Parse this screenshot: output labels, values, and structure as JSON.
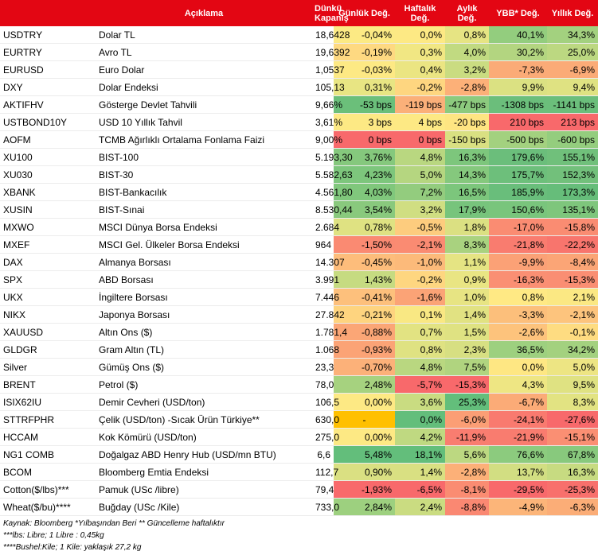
{
  "header": {
    "col0": "",
    "col1": "Açıklama",
    "col2": "Dünkü Kapanış",
    "col3": "Günlük Değ.",
    "col4": "Haftalık Değ.",
    "col5": "Aylık Değ.",
    "col6": "YBB* Değ.",
    "col7": "Yıllık Değ."
  },
  "rows": [
    {
      "code": "USDTRY",
      "desc": "Dolar TL",
      "close": "18,6428",
      "daily": "-0,04%",
      "weekly": "0,0%",
      "monthly": "0,8%",
      "ytd": "40,1%",
      "yearly": "34,3%",
      "c": [
        "#fcea84",
        "#fde984",
        "#e6e483",
        "#93cd7e",
        "#a3d17f"
      ]
    },
    {
      "code": "EURTRY",
      "desc": "Avro TL",
      "close": "19,6392",
      "daily": "-0,19%",
      "weekly": "0,3%",
      "monthly": "4,0%",
      "ytd": "30,2%",
      "yearly": "25,0%",
      "c": [
        "#fed981",
        "#f1e783",
        "#c1da81",
        "#b3d580",
        "#bcd881"
      ]
    },
    {
      "code": "EURUSD",
      "desc": "Euro Dolar",
      "close": "1,0537",
      "daily": "-0,03%",
      "weekly": "0,4%",
      "monthly": "3,2%",
      "ytd": "-7,3%",
      "yearly": "-6,9%",
      "c": [
        "#fde984",
        "#ebe582",
        "#cadc81",
        "#fbab77",
        "#fbab77"
      ]
    },
    {
      "code": "DXY",
      "desc": "Dolar Endeksi",
      "close": "105,13",
      "daily": "0,31%",
      "weekly": "-0,2%",
      "monthly": "-2,8%",
      "ytd": "9,9%",
      "yearly": "9,4%",
      "c": [
        "#e8e583",
        "#fed680",
        "#fcb078",
        "#dbe182",
        "#dfe282"
      ]
    },
    {
      "code": "AKTIFHV",
      "desc": "Gösterge Devlet Tahvili",
      "close": "9,66%",
      "daily": "-53 bps",
      "weekly": "-119 bps",
      "monthly": "-477 bps",
      "ytd": "-1308 bps",
      "yearly": "-1141 bps",
      "c": [
        "#6bbf7a",
        "#fbb079",
        "#8cca7e",
        "#6bbe7b",
        "#6bbe7b"
      ]
    },
    {
      "code": "USTBOND10Y",
      "desc": "USD 10 Yıllık Tahvil",
      "close": "3,61%",
      "daily": "3 bps",
      "weekly": "4 bps",
      "monthly": "-20 bps",
      "ytd": "210 bps",
      "yearly": "213 bps",
      "c": [
        "#fde984",
        "#fde984",
        "#fee582",
        "#f8696b",
        "#f8696b"
      ]
    },
    {
      "code": "AOFM",
      "desc": "TCMB Ağırlıklı Ortalama Fonlama Faizi",
      "close": "9,00%",
      "daily": "0 bps",
      "weekly": "0 bps",
      "monthly": "-150 bps",
      "ytd": "-500 bps",
      "yearly": "-600 bps",
      "c": [
        "#f8696b",
        "#f8696b",
        "#d9e082",
        "#a3d17f",
        "#94cd7e"
      ]
    },
    {
      "code": "XU100",
      "desc": "BIST-100",
      "close": "5.193,30",
      "daily": "3,76%",
      "weekly": "4,8%",
      "monthly": "16,3%",
      "ytd": "179,6%",
      "yearly": "155,1%",
      "c": [
        "#85c87d",
        "#b9d780",
        "#7dc67c",
        "#6bbe7b",
        "#70c07b"
      ]
    },
    {
      "code": "XU030",
      "desc": "BIST-30",
      "close": "5.582,63",
      "daily": "4,23%",
      "weekly": "5,0%",
      "monthly": "14,3%",
      "ytd": "175,7%",
      "yearly": "152,3%",
      "c": [
        "#7dc67c",
        "#b5d680",
        "#85c87d",
        "#6dbf7b",
        "#72c07b"
      ]
    },
    {
      "code": "XBANK",
      "desc": "BIST-Bankacılık",
      "close": "4.561,80",
      "daily": "4,03%",
      "weekly": "7,2%",
      "monthly": "16,5%",
      "ytd": "185,9%",
      "yearly": "173,3%",
      "c": [
        "#80c77c",
        "#93cc7e",
        "#7cc67c",
        "#69be7b",
        "#66bd7a"
      ]
    },
    {
      "code": "XUSIN",
      "desc": "BIST-Sınai",
      "close": "8.530,44",
      "daily": "3,54%",
      "weekly": "3,2%",
      "monthly": "17,9%",
      "ytd": "150,6%",
      "yearly": "135,1%",
      "c": [
        "#89c97d",
        "#d0de82",
        "#77c47c",
        "#79c57c",
        "#7ec67c"
      ]
    },
    {
      "code": "MXWO",
      "desc": "MSCI Dünya Borsa Endeksi",
      "close": "2.684",
      "daily": "0,78%",
      "weekly": "-0,5%",
      "monthly": "1,8%",
      "ytd": "-17,0%",
      "yearly": "-15,8%",
      "c": [
        "#dfe282",
        "#fdcc7e",
        "#dbe082",
        "#fa8c72",
        "#fa8c72"
      ]
    },
    {
      "code": "MXEF",
      "desc": "MSCI Gel. Ülkeler Borsa Endeksi",
      "close": "964",
      "daily": "-1,50%",
      "weekly": "-2,1%",
      "monthly": "8,3%",
      "ytd": "-21,8%",
      "yearly": "-22,2%",
      "c": [
        "#fa8a72",
        "#fa8b72",
        "#a9d27f",
        "#f97c6f",
        "#f8756d"
      ]
    },
    {
      "code": "DAX",
      "desc": "Almanya Borsası",
      "close": "14.307",
      "daily": "-0,45%",
      "weekly": "-1,0%",
      "monthly": "1,1%",
      "ytd": "-9,9%",
      "yearly": "-8,4%",
      "c": [
        "#fdbd7b",
        "#fcba7a",
        "#e5e483",
        "#fba176",
        "#fba576"
      ]
    },
    {
      "code": "SPX",
      "desc": "ABD Borsası",
      "close": "3.991",
      "daily": "1,43%",
      "weekly": "-0,2%",
      "monthly": "0,9%",
      "ytd": "-16,3%",
      "yearly": "-15,3%",
      "c": [
        "#c6db81",
        "#fed680",
        "#e9e583",
        "#fa8f73",
        "#fa8e73"
      ]
    },
    {
      "code": "UKX",
      "desc": "İngiltere Borsası",
      "close": "7.446",
      "daily": "-0,41%",
      "weekly": "-1,6%",
      "monthly": "1,0%",
      "ytd": "0,8%",
      "yearly": "2,1%",
      "c": [
        "#fdc07c",
        "#fba376",
        "#e7e483",
        "#ffe984",
        "#fbe883"
      ]
    },
    {
      "code": "NIKX",
      "desc": "Japonya Borsası",
      "close": "27.842",
      "daily": "-0,21%",
      "weekly": "0,1%",
      "monthly": "1,4%",
      "ytd": "-3,3%",
      "yearly": "-2,1%",
      "c": [
        "#fed47f",
        "#f9e883",
        "#e1e282",
        "#fcbf7b",
        "#fdc47d"
      ]
    },
    {
      "code": "XAUUSD",
      "desc": "Altın Ons ($)",
      "close": "1.781,4",
      "daily": "-0,88%",
      "weekly": "0,7%",
      "monthly": "1,5%",
      "ytd": "-2,6%",
      "yearly": "-0,1%",
      "c": [
        "#fba676",
        "#e2e382",
        "#dfe282",
        "#fdc37c",
        "#fedc81"
      ]
    },
    {
      "code": "GLDGR",
      "desc": "Gram Altın (TL)",
      "close": "1.068",
      "daily": "-0,93%",
      "weekly": "0,8%",
      "monthly": "2,3%",
      "ytd": "36,5%",
      "yearly": "34,2%",
      "c": [
        "#fba376",
        "#dfe282",
        "#d7df82",
        "#9dd07f",
        "#a3d17f"
      ]
    },
    {
      "code": "Silver",
      "desc": "Gümüş Ons ($)",
      "close": "23,3",
      "daily": "-0,70%",
      "weekly": "4,8%",
      "monthly": "7,5%",
      "ytd": "0,0%",
      "yearly": "5,0%",
      "c": [
        "#fcb179",
        "#b9d780",
        "#b0d47f",
        "#fee783",
        "#ede583"
      ]
    },
    {
      "code": "BRENT",
      "desc": "Petrol ($)",
      "close": "78,0",
      "daily": "2,48%",
      "weekly": "-5,7%",
      "monthly": "-15,3%",
      "ytd": "4,3%",
      "yearly": "9,5%",
      "c": [
        "#a6d27f",
        "#f8696b",
        "#f8696b",
        "#eee683",
        "#dfe282"
      ]
    },
    {
      "code": "ISIX62IU",
      "desc": "Demir Cevheri (USD/ton)",
      "close": "106,5",
      "daily": "0,00%",
      "weekly": "3,6%",
      "monthly": "25,3%",
      "ytd": "-6,7%",
      "yearly": "8,3%",
      "c": [
        "#fde984",
        "#c9dc81",
        "#63be7b",
        "#fbab77",
        "#e2e382"
      ]
    },
    {
      "code": "STTRFPHR",
      "desc": "Çelik (USD/ton) -Sıcak Ürün Türkiye**",
      "close": "630,0",
      "daily": "-",
      "weekly": "0,0%",
      "monthly": "-6,0%",
      "ytd": "-24,1%",
      "yearly": "-27,6%",
      "c": [
        "#ffc000",
        "#63be7b",
        "#fb9e75",
        "#f97a6f",
        "#f8696b"
      ]
    },
    {
      "code": "HCCAM",
      "desc": "Kok Kömürü (USD/ton)",
      "close": "275,0",
      "daily": "0,00%",
      "weekly": "4,2%",
      "monthly": "-11,9%",
      "ytd": "-21,9%",
      "yearly": "-15,1%",
      "c": [
        "#fde984",
        "#bfd981",
        "#f97d70",
        "#f97c6f",
        "#fa8f73"
      ]
    },
    {
      "code": "NG1 COMB",
      "desc": "Doğalgaz ABD Henry Hub (USD/mn BTU)",
      "close": "6,6",
      "daily": "5,48%",
      "weekly": "18,1%",
      "monthly": "5,6%",
      "ytd": "76,6%",
      "yearly": "67,8%",
      "c": [
        "#63be7b",
        "#63be7b",
        "#bcd881",
        "#8ccb7e",
        "#88c97d"
      ]
    },
    {
      "code": "BCOM",
      "desc": "Bloomberg Emtia Endeksi",
      "close": "112,7",
      "daily": "0,90%",
      "weekly": "1,4%",
      "monthly": "-2,8%",
      "ytd": "13,7%",
      "yearly": "16,3%",
      "c": [
        "#dae082",
        "#d9e082",
        "#fcb078",
        "#d2de82",
        "#c7db81"
      ]
    },
    {
      "code": "Cotton($/lbs)***",
      "desc": "Pamuk (USc /libre)",
      "close": "79,4",
      "daily": "-1,93%",
      "weekly": "-6,5%",
      "monthly": "-8,1%",
      "ytd": "-29,5%",
      "yearly": "-25,3%",
      "c": [
        "#f8696b",
        "#f8696b",
        "#fa8c72",
        "#f8696b",
        "#f8706c"
      ]
    },
    {
      "code": "Wheat($/bu)****",
      "desc": "Buğday (USc /Kile)",
      "close": "733,0",
      "daily": "2,84%",
      "weekly": "2,4%",
      "monthly": "-8,8%",
      "ytd": "-4,9%",
      "yearly": "-6,3%",
      "c": [
        "#9dd07f",
        "#cadc81",
        "#fa8872",
        "#fcb579",
        "#fbad77"
      ]
    }
  ],
  "notes": {
    "line1": "Kaynak: Bloomberg *Yılbaşından Beri  ** Güncelleme haftalıktır",
    "line2": "***lbs: Libre; 1 Libre : 0,45kg",
    "line3": "****Bushel:Kile; 1 Kile: yaklaşık 27,2 kg"
  }
}
